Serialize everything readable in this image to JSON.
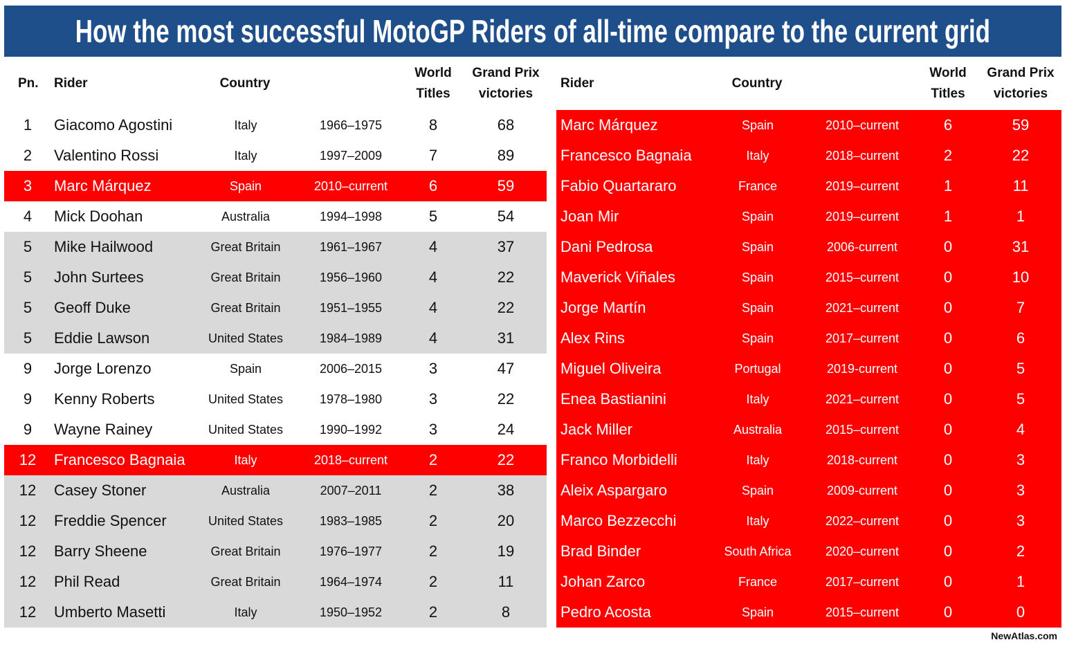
{
  "title": "How the most successful MotoGP Riders of all-time compare to the current grid",
  "left_table": {
    "headers": {
      "pos": "Pn.",
      "rider": "Rider",
      "country": "Country",
      "titles_line1": "World",
      "titles_line2": "Titles",
      "gp_line1": "Grand Prix",
      "gp_line2": "victories"
    },
    "rows": [
      {
        "pos": "1",
        "rider": "Giacomo Agostini",
        "country": "Italy",
        "years": "1966–1975",
        "titles": "8",
        "wins": "68",
        "highlight": "white"
      },
      {
        "pos": "2",
        "rider": "Valentino Rossi",
        "country": "Italy",
        "years": "1997–2009",
        "titles": "7",
        "wins": "89",
        "highlight": "white"
      },
      {
        "pos": "3",
        "rider": "Marc Márquez",
        "country": "Spain",
        "years": "2010–current",
        "titles": "6",
        "wins": "59",
        "highlight": "red"
      },
      {
        "pos": "4",
        "rider": "Mick Doohan",
        "country": "Australia",
        "years": "1994–1998",
        "titles": "5",
        "wins": "54",
        "highlight": "white"
      },
      {
        "pos": "5",
        "rider": "Mike Hailwood",
        "country": "Great Britain",
        "years": "1961–1967",
        "titles": "4",
        "wins": "37",
        "highlight": "gray"
      },
      {
        "pos": "5",
        "rider": "John Surtees",
        "country": "Great Britain",
        "years": "1956–1960",
        "titles": "4",
        "wins": "22",
        "highlight": "gray"
      },
      {
        "pos": "5",
        "rider": "Geoff Duke",
        "country": "Great Britain",
        "years": "1951–1955",
        "titles": "4",
        "wins": "22",
        "highlight": "gray"
      },
      {
        "pos": "5",
        "rider": "Eddie Lawson",
        "country": "United States",
        "years": "1984–1989",
        "titles": "4",
        "wins": "31",
        "highlight": "gray"
      },
      {
        "pos": "9",
        "rider": "Jorge Lorenzo",
        "country": "Spain",
        "years": "2006–2015",
        "titles": "3",
        "wins": "47",
        "highlight": "white"
      },
      {
        "pos": "9",
        "rider": "Kenny Roberts",
        "country": "United States",
        "years": "1978–1980",
        "titles": "3",
        "wins": "22",
        "highlight": "white"
      },
      {
        "pos": "9",
        "rider": "Wayne Rainey",
        "country": "United States",
        "years": "1990–1992",
        "titles": "3",
        "wins": "24",
        "highlight": "white"
      },
      {
        "pos": "12",
        "rider": "Francesco Bagnaia",
        "country": "Italy",
        "years": "2018–current",
        "titles": "2",
        "wins": "22",
        "highlight": "red"
      },
      {
        "pos": "12",
        "rider": "Casey Stoner",
        "country": "Australia",
        "years": "2007–2011",
        "titles": "2",
        "wins": "38",
        "highlight": "gray"
      },
      {
        "pos": "12",
        "rider": "Freddie Spencer",
        "country": "United States",
        "years": "1983–1985",
        "titles": "2",
        "wins": "20",
        "highlight": "gray"
      },
      {
        "pos": "12",
        "rider": "Barry Sheene",
        "country": "Great Britain",
        "years": "1976–1977",
        "titles": "2",
        "wins": "19",
        "highlight": "gray"
      },
      {
        "pos": "12",
        "rider": "Phil Read",
        "country": "Great Britain",
        "years": "1964–1974",
        "titles": "2",
        "wins": "11",
        "highlight": "gray"
      },
      {
        "pos": "12",
        "rider": "Umberto Masetti",
        "country": "Italy",
        "years": "1950–1952",
        "titles": "2",
        "wins": "8",
        "highlight": "gray"
      }
    ]
  },
  "right_table": {
    "headers": {
      "rider": "Rider",
      "country": "Country",
      "titles_line1": "World",
      "titles_line2": "Titles",
      "gp_line1": "Grand Prix",
      "gp_line2": "victories"
    },
    "rows": [
      {
        "rider": "Marc Márquez",
        "country": "Spain",
        "years": "2010–current",
        "titles": "6",
        "wins": "59"
      },
      {
        "rider": "Francesco Bagnaia",
        "country": "Italy",
        "years": "2018–current",
        "titles": "2",
        "wins": "22"
      },
      {
        "rider": "Fabio Quartararo",
        "country": "France",
        "years": "2019–current",
        "titles": "1",
        "wins": "11"
      },
      {
        "rider": "Joan Mir",
        "country": "Spain",
        "years": "2019–current",
        "titles": "1",
        "wins": "1"
      },
      {
        "rider": "Dani Pedrosa",
        "country": "Spain",
        "years": "2006-current",
        "titles": "0",
        "wins": "31"
      },
      {
        "rider": "Maverick Viñales",
        "country": "Spain",
        "years": "2015–current",
        "titles": "0",
        "wins": "10"
      },
      {
        "rider": "Jorge Martín",
        "country": "Spain",
        "years": "2021–current",
        "titles": "0",
        "wins": "7"
      },
      {
        "rider": "Alex Rins",
        "country": "Spain",
        "years": "2017–current",
        "titles": "0",
        "wins": "6"
      },
      {
        "rider": "Miguel Oliveira",
        "country": "Portugal",
        "years": "2019-current",
        "titles": "0",
        "wins": "5"
      },
      {
        "rider": "Enea Bastianini",
        "country": "Italy",
        "years": "2021–current",
        "titles": "0",
        "wins": "5"
      },
      {
        "rider": "Jack Miller",
        "country": "Australia",
        "years": "2015–current",
        "titles": "0",
        "wins": "4"
      },
      {
        "rider": "Franco Morbidelli",
        "country": "Italy",
        "years": "2018-current",
        "titles": "0",
        "wins": "3"
      },
      {
        "rider": "Aleix Aspargaro",
        "country": "Spain",
        "years": "2009-current",
        "titles": "0",
        "wins": "3"
      },
      {
        "rider": "Marco Bezzecchi",
        "country": "Italy",
        "years": "2022–current",
        "titles": "0",
        "wins": "3"
      },
      {
        "rider": "Brad Binder",
        "country": "South Africa",
        "years": "2020–current",
        "titles": "0",
        "wins": "2"
      },
      {
        "rider": "Johan Zarco",
        "country": "France",
        "years": "2017–current",
        "titles": "0",
        "wins": "1"
      },
      {
        "rider": "Pedro Acosta",
        "country": "Spain",
        "years": "2015–current",
        "titles": "0",
        "wins": "0"
      }
    ]
  },
  "footer": "NewAtlas.com",
  "colors": {
    "title_bg": "#1f4f8b",
    "highlight_red": "#ff0000",
    "gray": "#d9d9d9"
  }
}
